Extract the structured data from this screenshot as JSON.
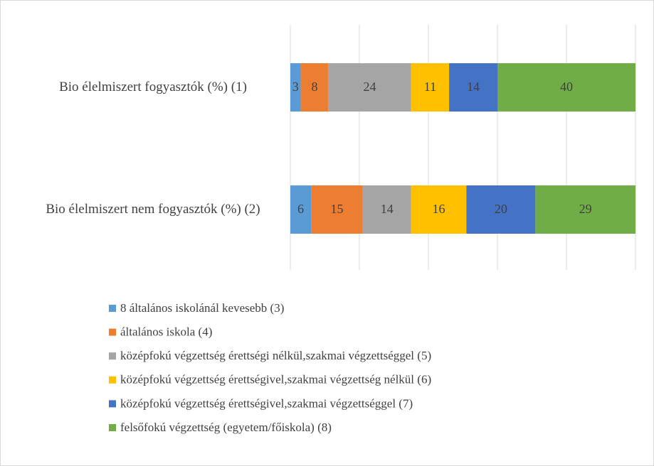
{
  "chart_data": {
    "type": "stacked-barh",
    "categories": [
      "Bio élelmiszert fogyasztók (%) (1)",
      "Bio élelmiszert nem fogyasztók (%) (2)"
    ],
    "series": [
      {
        "name": "8 általános iskolánál kevesebb (3)",
        "color": "#5b9bd5",
        "values": [
          3,
          6
        ]
      },
      {
        "name": "általános iskola (4)",
        "color": "#ed7d31",
        "values": [
          8,
          15
        ]
      },
      {
        "name": "középfokú végzettség érettségi nélkül,szakmai végzettséggel (5)",
        "color": "#a5a5a5",
        "values": [
          24,
          14
        ]
      },
      {
        "name": "középfokú végzettség érettségivel,szakmai végzettség nélkül (6)",
        "color": "#ffc000",
        "values": [
          11,
          16
        ]
      },
      {
        "name": "középfokú végzettség érettségivel,szakmai végzettséggel (7)",
        "color": "#4472c4",
        "values": [
          14,
          20
        ]
      },
      {
        "name": "felsőfokú végzettség (egyetem/főiskola) (8)",
        "color": "#70ad47",
        "values": [
          40,
          29
        ]
      }
    ],
    "xlim": [
      0,
      100
    ],
    "xticks": [
      0,
      20,
      40,
      60,
      80,
      100
    ],
    "grid": true,
    "legend": "bottom"
  }
}
